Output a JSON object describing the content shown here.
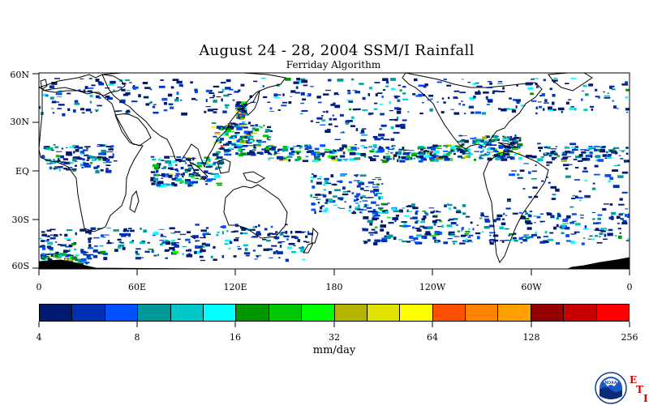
{
  "title": "August 24 - 28, 2004 SSM/I Rainfall",
  "subtitle": "Ferriday Algorithm",
  "map": {
    "lat_labels": [
      "60N",
      "30N",
      "EQ",
      "30S",
      "60S"
    ],
    "lon_labels": [
      "0",
      "60E",
      "120E",
      "180",
      "120W",
      "60W",
      "0"
    ],
    "ocean_color": "#ffffff",
    "land_outline_color": "#000000",
    "antarctic_fill_color": "#000000"
  },
  "colorbar": {
    "colors": [
      "#001a72",
      "#0030b4",
      "#0050ff",
      "#009898",
      "#00c8c8",
      "#00ffff",
      "#009600",
      "#00c800",
      "#00ff00",
      "#b4b400",
      "#e1e100",
      "#ffff00",
      "#ff5000",
      "#ff8200",
      "#ffa000",
      "#960000",
      "#c80000",
      "#ff0000"
    ],
    "tick_labels": [
      "4",
      "8",
      "16",
      "32",
      "64",
      "128",
      "256"
    ],
    "units": "mm/day"
  },
  "logo": {
    "name": "NOAA",
    "letters": [
      "E",
      "T",
      "I"
    ]
  }
}
